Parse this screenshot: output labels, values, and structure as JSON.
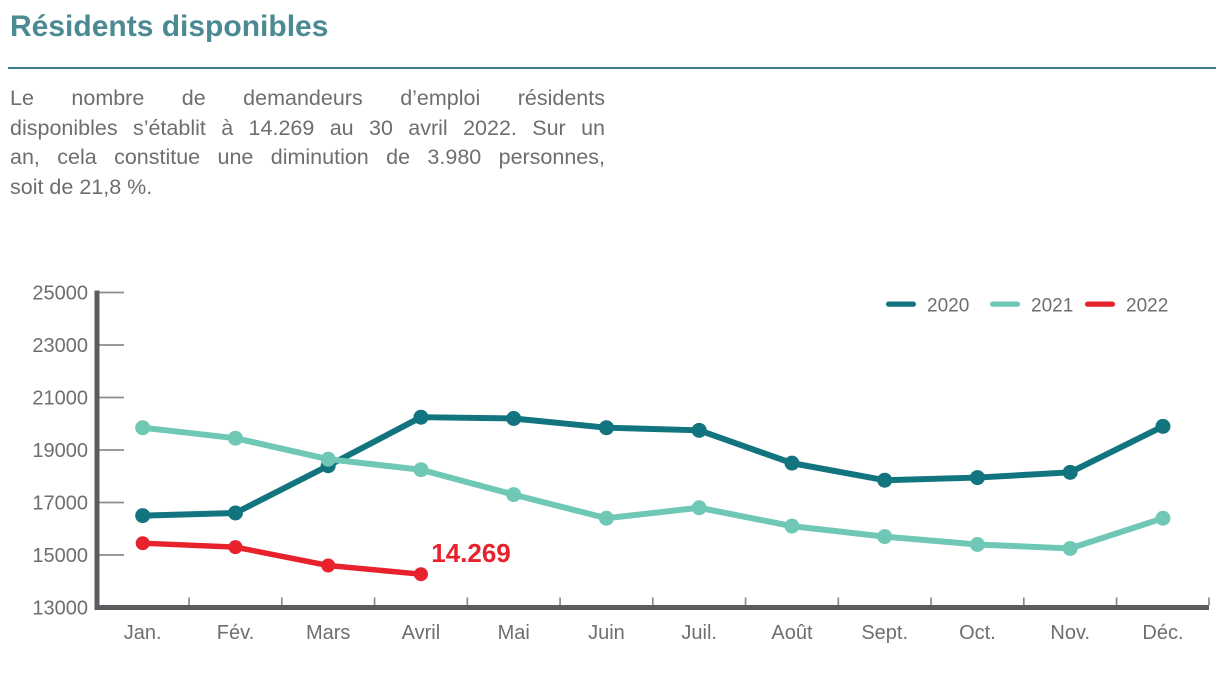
{
  "header": {
    "title": "Résidents disponibles"
  },
  "intro": {
    "lines": [
      "Le nombre de demandeurs d’emploi résidents",
      "disponibles s’établit à 14.269 au 30 avril 2022. Sur un",
      "an, cela constitue une diminution de 3.980 personnes,",
      "soit de 21,8 %."
    ]
  },
  "theme": {
    "title-color": "#4b8a92",
    "rule-color": "#3f7d86",
    "text-color": "#6d6e71",
    "axis-color": "#5a5c60",
    "tick-color": "#898c8f"
  },
  "chart_data": {
    "type": "line",
    "title": "",
    "xlabel": "",
    "ylabel": "",
    "categories": [
      "Jan.",
      "Fév.",
      "Mars",
      "Avril",
      "Mai",
      "Juin",
      "Juil.",
      "Août",
      "Sept.",
      "Oct.",
      "Nov.",
      "Déc."
    ],
    "ylim": [
      13000,
      25000
    ],
    "ytick_step": 2000,
    "ytick_labels": [
      "13000",
      "15000",
      "17000",
      "19000",
      "21000",
      "23000",
      "25000"
    ],
    "grid": false,
    "legend": {
      "position": "top-right",
      "entries": [
        "2020",
        "2021",
        "2022"
      ]
    },
    "series": [
      {
        "name": "2020",
        "color": "#12747e",
        "values": [
          16500,
          16600,
          18400,
          20250,
          20200,
          19850,
          19750,
          18500,
          17850,
          17950,
          18150,
          19900
        ]
      },
      {
        "name": "2021",
        "color": "#6fc8b6",
        "values": [
          19850,
          19450,
          18650,
          18249,
          17300,
          16400,
          16800,
          16100,
          15700,
          15400,
          15250,
          16400
        ]
      },
      {
        "name": "2022",
        "color": "#e8222c",
        "values": [
          15450,
          15300,
          14600,
          14269
        ]
      }
    ],
    "annotation": {
      "text": "14.269",
      "series": "2022",
      "category": "Avril",
      "value": 14269,
      "color": "#e8222c"
    }
  }
}
